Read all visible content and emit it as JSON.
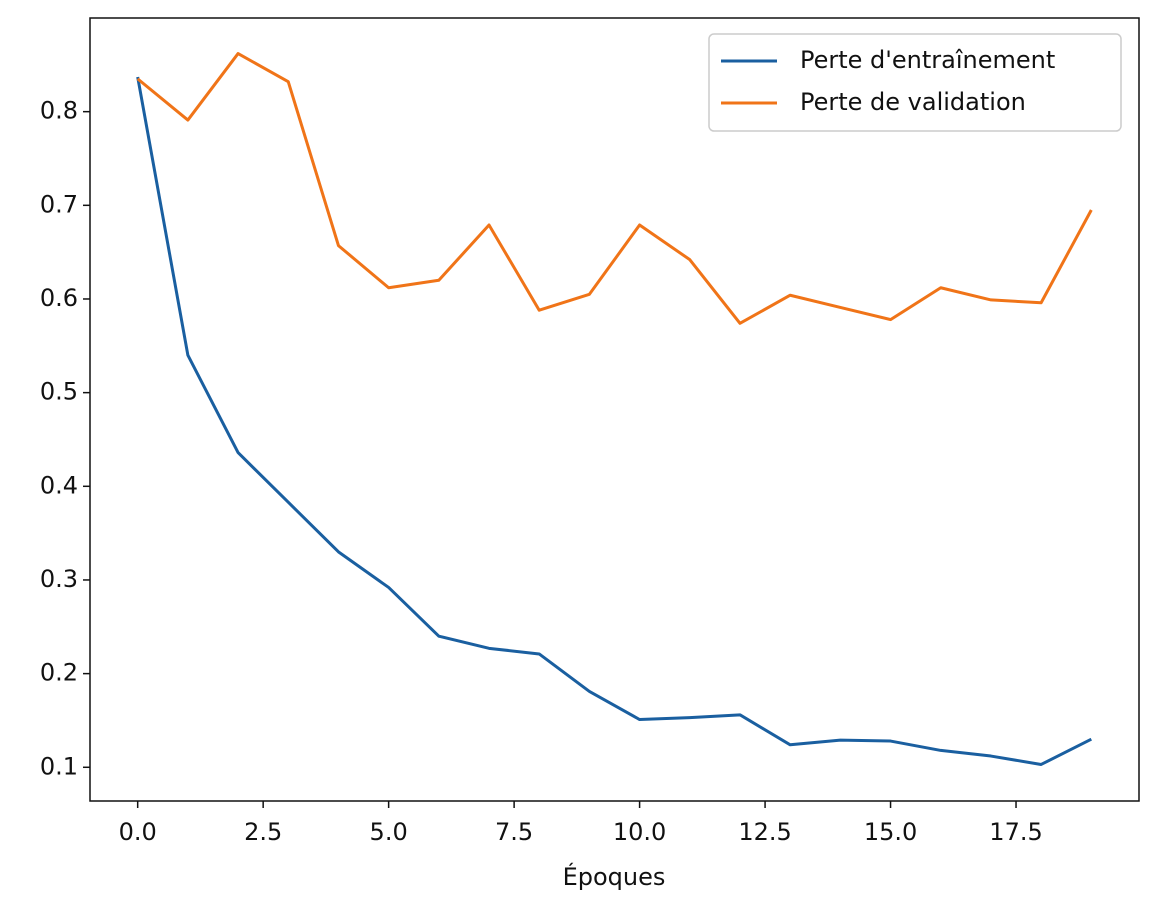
{
  "chart_data": {
    "type": "line",
    "x": [
      0,
      1,
      2,
      3,
      4,
      5,
      6,
      7,
      8,
      9,
      10,
      11,
      12,
      13,
      14,
      15,
      16,
      17,
      18,
      19
    ],
    "series": [
      {
        "name": "Perte d'entraînement",
        "color": "#1a5fa0",
        "values": [
          0.837,
          0.54,
          0.436,
          0.383,
          0.33,
          0.292,
          0.24,
          0.227,
          0.221,
          0.181,
          0.151,
          0.153,
          0.156,
          0.124,
          0.129,
          0.128,
          0.118,
          0.112,
          0.103,
          0.13
        ]
      },
      {
        "name": "Perte de validation",
        "color": "#f07418",
        "values": [
          0.835,
          0.791,
          0.862,
          0.832,
          0.657,
          0.612,
          0.62,
          0.679,
          0.588,
          0.605,
          0.679,
          0.642,
          0.574,
          0.604,
          0.591,
          0.578,
          0.612,
          0.599,
          0.596,
          0.695
        ]
      }
    ],
    "xlabel": "Époques",
    "xlim": [
      -0.95,
      19.95
    ],
    "xticks": [
      {
        "value": 0,
        "label": "0.0"
      },
      {
        "value": 2.5,
        "label": "2.5"
      },
      {
        "value": 5,
        "label": "5.0"
      },
      {
        "value": 7.5,
        "label": "7.5"
      },
      {
        "value": 10,
        "label": "10.0"
      },
      {
        "value": 12.5,
        "label": "12.5"
      },
      {
        "value": 15,
        "label": "15.0"
      },
      {
        "value": 17.5,
        "label": "17.5"
      }
    ],
    "ylim": [
      0.064,
      0.9
    ],
    "yticks": [
      0.1,
      0.2,
      0.3,
      0.4,
      0.5,
      0.6,
      0.7,
      0.8
    ],
    "legend": "upper right"
  }
}
